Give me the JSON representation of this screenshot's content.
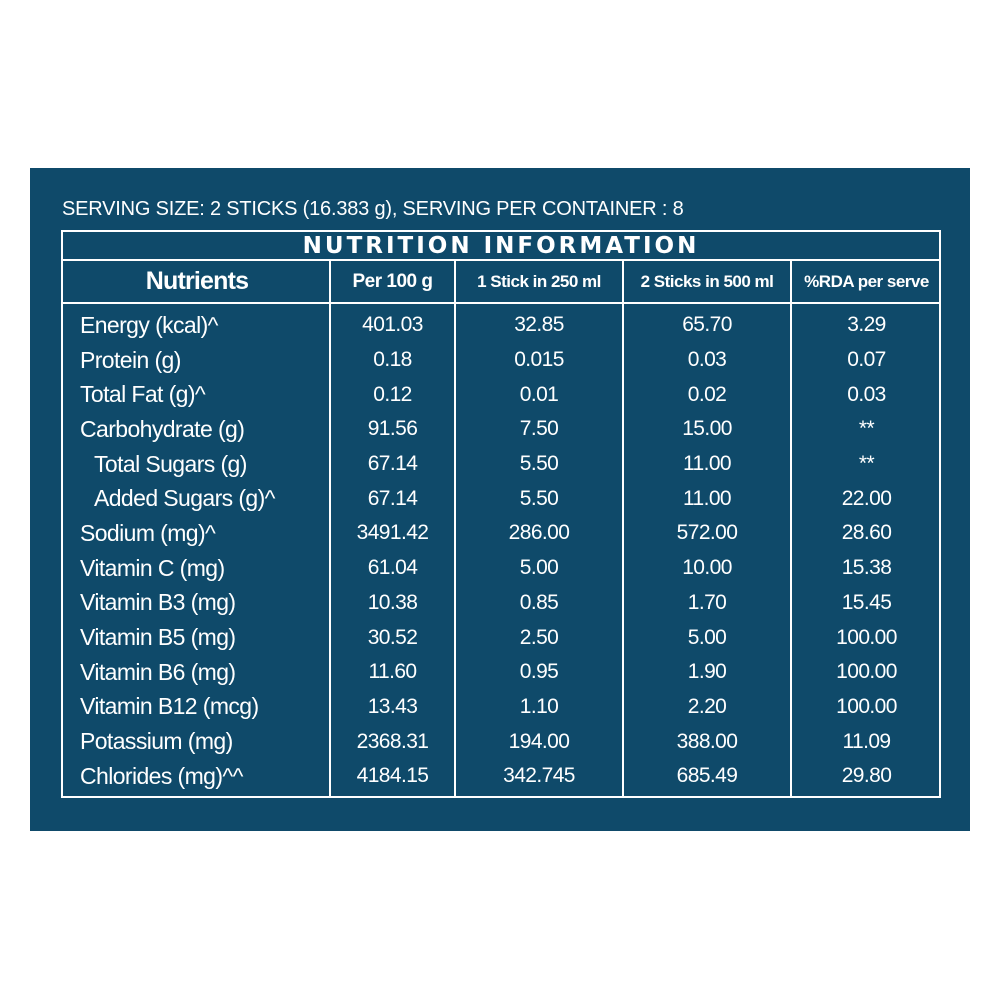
{
  "serving_line": "SERVING SIZE: 2 STICKS (16.383 g), SERVING PER CONTAINER : 8",
  "table_title": "NUTRITION INFORMATION",
  "headers": {
    "nutrients": "Nutrients",
    "per_100g": "Per 100 g",
    "one_stick": "1 Stick in 250 ml",
    "two_sticks": "2 Sticks in 500 ml",
    "rda": "%RDA per serve"
  },
  "rows": [
    {
      "name": "Energy (kcal)^",
      "per_100g": "401.03",
      "one_stick": "32.85",
      "two_sticks": "65.70",
      "rda": "3.29",
      "indent": false
    },
    {
      "name": "Protein (g)",
      "per_100g": "0.18",
      "one_stick": "0.015",
      "two_sticks": "0.03",
      "rda": "0.07",
      "indent": false
    },
    {
      "name": "Total Fat (g)^",
      "per_100g": "0.12",
      "one_stick": "0.01",
      "two_sticks": "0.02",
      "rda": "0.03",
      "indent": false
    },
    {
      "name": "Carbohydrate (g)",
      "per_100g": "91.56",
      "one_stick": "7.50",
      "two_sticks": "15.00",
      "rda": "**",
      "indent": false
    },
    {
      "name": "Total Sugars (g)",
      "per_100g": "67.14",
      "one_stick": "5.50",
      "two_sticks": "11.00",
      "rda": "**",
      "indent": true
    },
    {
      "name": "Added Sugars (g)^",
      "per_100g": "67.14",
      "one_stick": "5.50",
      "two_sticks": "11.00",
      "rda": "22.00",
      "indent": true
    },
    {
      "name": "Sodium (mg)^",
      "per_100g": "3491.42",
      "one_stick": "286.00",
      "two_sticks": "572.00",
      "rda": "28.60",
      "indent": false
    },
    {
      "name": "Vitamin C (mg)",
      "per_100g": "61.04",
      "one_stick": "5.00",
      "two_sticks": "10.00",
      "rda": "15.38",
      "indent": false
    },
    {
      "name": "Vitamin B3 (mg)",
      "per_100g": "10.38",
      "one_stick": "0.85",
      "two_sticks": "1.70",
      "rda": "15.45",
      "indent": false
    },
    {
      "name": "Vitamin B5 (mg)",
      "per_100g": "30.52",
      "one_stick": "2.50",
      "two_sticks": "5.00",
      "rda": "100.00",
      "indent": false
    },
    {
      "name": "Vitamin B6 (mg)",
      "per_100g": "11.60",
      "one_stick": "0.95",
      "two_sticks": "1.90",
      "rda": "100.00",
      "indent": false
    },
    {
      "name": "Vitamin B12 (mcg)",
      "per_100g": "13.43",
      "one_stick": "1.10",
      "two_sticks": "2.20",
      "rda": "100.00",
      "indent": false
    },
    {
      "name": "Potassium (mg)",
      "per_100g": "2368.31",
      "one_stick": "194.00",
      "two_sticks": "388.00",
      "rda": "11.09",
      "indent": false
    },
    {
      "name": "Chlorides (mg)^^",
      "per_100g": "4184.15",
      "one_stick": "342.745",
      "two_sticks": "685.49",
      "rda": "29.80",
      "indent": false
    }
  ],
  "colors": {
    "panel_background": "#0f4a6a",
    "text": "#ffffff",
    "page_background": "#ffffff"
  }
}
